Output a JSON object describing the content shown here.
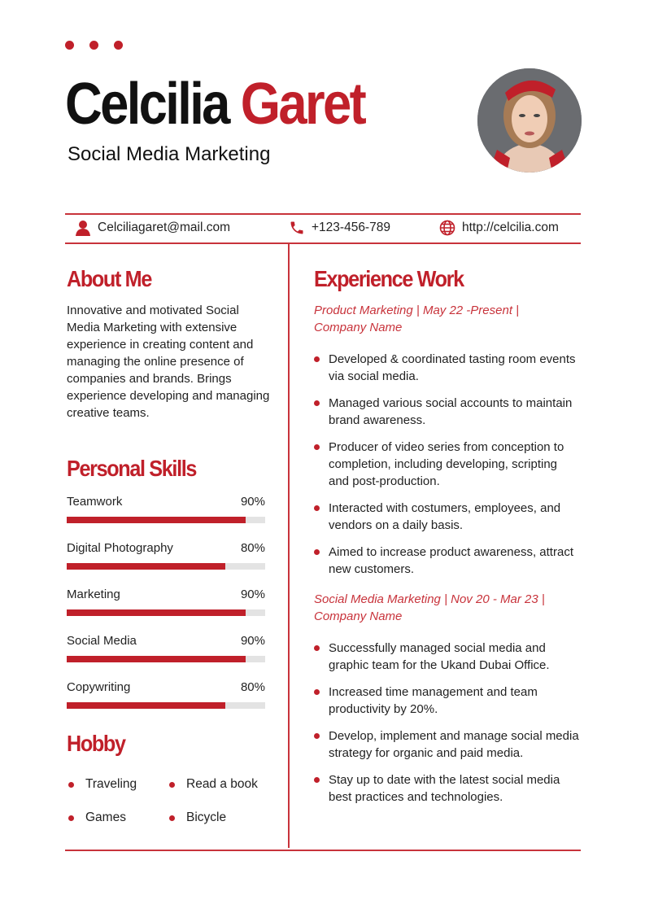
{
  "accent_color": "#c0202a",
  "header": {
    "first_name": "Celcilia",
    "last_name": "Garet",
    "title": "Social Media Marketing"
  },
  "contact": {
    "email": "Celciliagaret@mail.com",
    "phone": "+123-456-789",
    "website": "http://celcilia.com"
  },
  "about": {
    "heading": "About Me",
    "text": "Innovative and motivated Social Media Marketing with extensive experience in creating content and managing the online presence of companies and brands. Brings experience developing and managing creative teams."
  },
  "skills": {
    "heading": "Personal Skills",
    "items": [
      {
        "label": "Teamwork",
        "value": "90%",
        "level": 90
      },
      {
        "label": "Digital Photography",
        "value": "80%",
        "level": 80
      },
      {
        "label": "Marketing",
        "value": "90%",
        "level": 90
      },
      {
        "label": "Social Media",
        "value": "90%",
        "level": 90
      },
      {
        "label": "Copywriting",
        "value": "80%",
        "level": 80
      }
    ]
  },
  "hobby": {
    "heading": "Hobby",
    "items": [
      "Traveling",
      "Read a book",
      "Games",
      "Bicycle"
    ]
  },
  "experience": {
    "heading": "Experience Work",
    "jobs": [
      {
        "role": "Product Marketing | May 22 -Present | Company Name",
        "bullets": [
          "Developed & coordinated tasting room events via social media.",
          "Managed various social accounts to maintain brand awareness.",
          "Producer of video series from conception to completion, including developing, scripting and post-production.",
          "Interacted with costumers, employees, and vendors on a daily basis.",
          "Aimed to increase product awareness, attract new customers."
        ]
      },
      {
        "role": "Social Media Marketing | Nov 20 - Mar 23 | Company Name",
        "bullets": [
          "Successfully managed social media and graphic team for the Ukand Dubai Office.",
          "Increased time management and team productivity by 20%.",
          "Develop, implement and manage social media strategy for organic and paid media.",
          "Stay up to date with the latest social media best practices and technologies."
        ]
      }
    ]
  }
}
